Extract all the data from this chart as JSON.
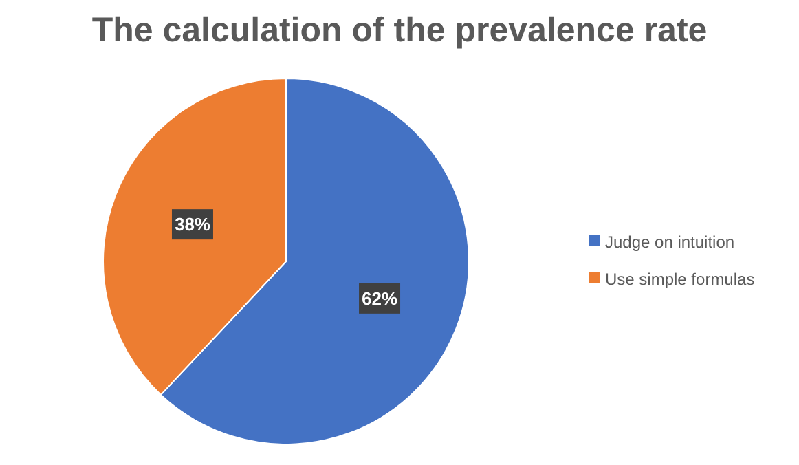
{
  "chart_data": {
    "type": "pie",
    "title": "The calculation of the prevalence rate",
    "categories": [
      "Judge on intuition",
      "Use simple formulas"
    ],
    "values": [
      62,
      38
    ],
    "colors": [
      "#4472c4",
      "#ed7d31"
    ],
    "value_labels": [
      "62%",
      "38%"
    ],
    "legend": "right"
  }
}
